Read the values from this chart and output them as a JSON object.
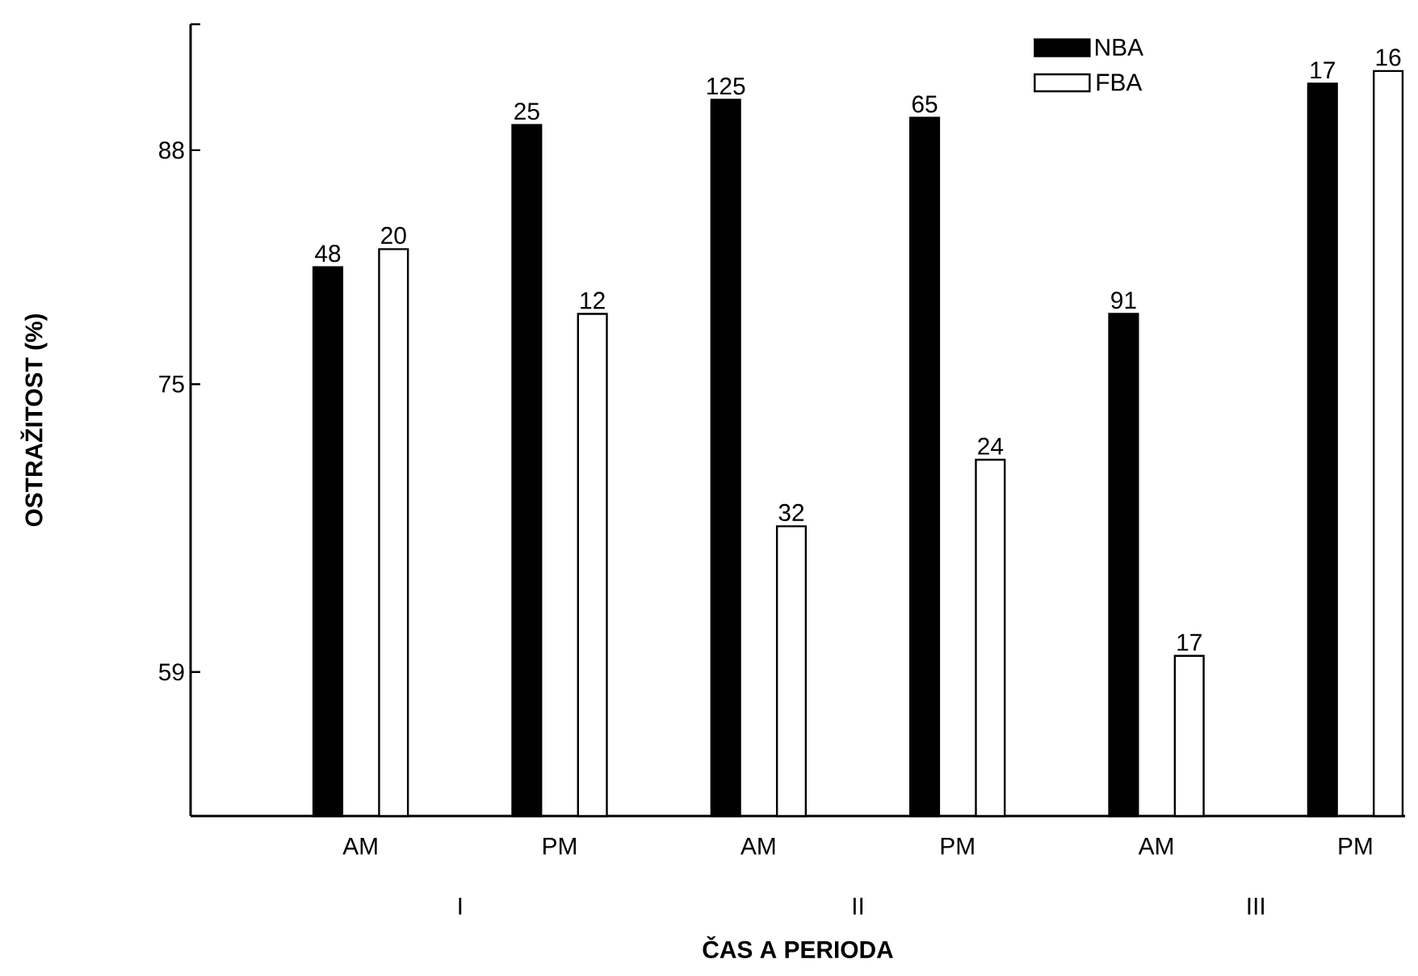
{
  "chart_data": {
    "type": "bar",
    "xlabel": "ČAS A PERIODA",
    "ylabel": "OSTRAŽITOST (%)",
    "categories": [
      "AM",
      "PM",
      "AM",
      "PM",
      "AM",
      "PM"
    ],
    "series": [
      {
        "name": "NBA",
        "color": "#000000",
        "values": [
          81.5,
          89.4,
          90.8,
          89.8,
          78.9,
          91.7
        ]
      },
      {
        "name": "FBA",
        "color": "#ffffff",
        "values": [
          82.5,
          78.9,
          67.1,
          70.8,
          59.9,
          92.4
        ]
      }
    ],
    "ylim": [
      51,
      95
    ],
    "yticks": [
      59,
      75,
      88,
      {
        "value": 95,
        "label": null
      }
    ],
    "annotations": [
      "I",
      "II",
      "III",
      {
        "text": "48",
        "y": 81.5
      },
      {
        "text": "20",
        "y": 82.5
      },
      {
        "text": "25",
        "y": 89.4
      },
      {
        "text": "12",
        "y": 78.9
      },
      {
        "text": "125",
        "y": 90.8
      },
      {
        "text": "32",
        "y": 67.1
      },
      {
        "text": "65",
        "y": 89.8
      },
      {
        "text": "24",
        "y": 70.8
      },
      {
        "text": "91",
        "y": 78.9
      },
      {
        "text": "17",
        "y": 59.9
      },
      {
        "text": "17",
        "y": 91.7
      },
      {
        "text": "16",
        "y": 92.4
      }
    ],
    "legend": "top"
  }
}
